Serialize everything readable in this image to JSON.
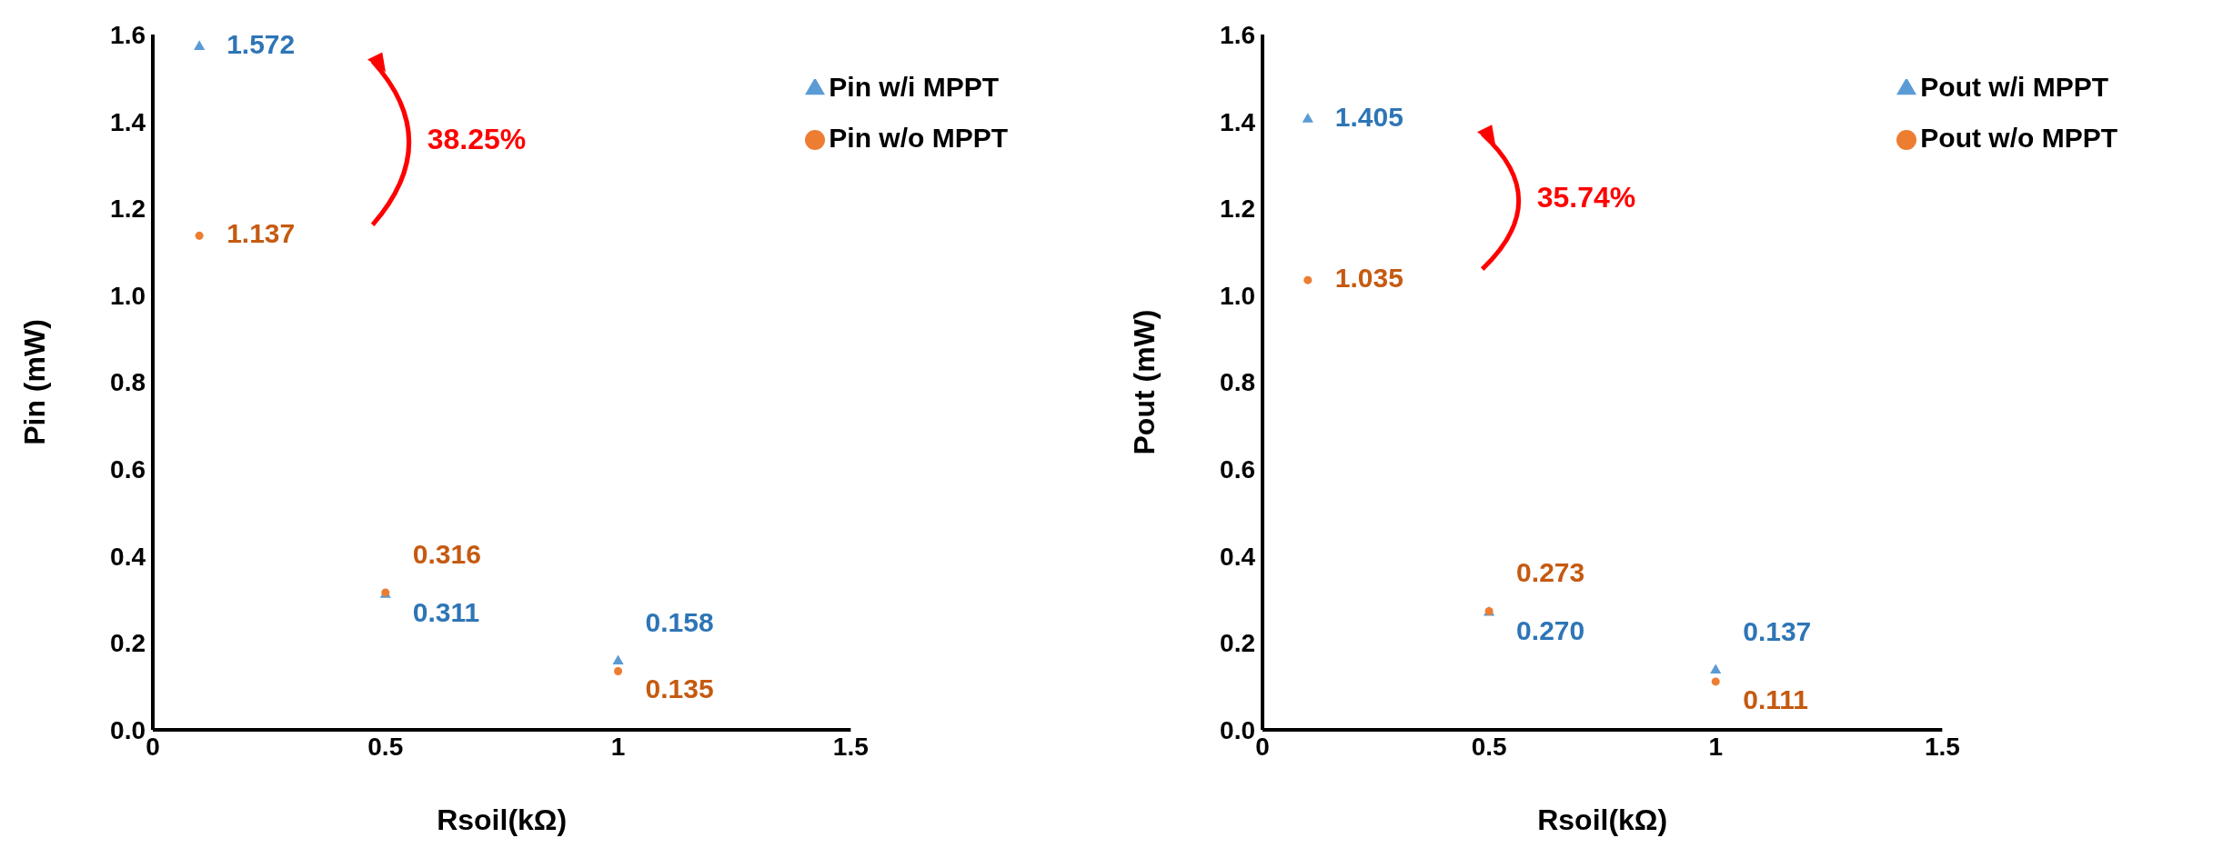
{
  "chart_data": [
    {
      "type": "scatter",
      "xlabel": "Rsoil(kΩ)",
      "ylabel": "Pin (mW)",
      "x": [
        0.1,
        0.5,
        1
      ],
      "xlim": [
        0,
        1.5
      ],
      "xticks": [
        0,
        0.5,
        1,
        1.5
      ],
      "ylim": [
        0,
        1.6
      ],
      "yticks": [
        {
          "value": 0,
          "label": "0.0"
        },
        {
          "value": 0.2,
          "label": "0.2"
        },
        {
          "value": 0.4,
          "label": "0.4"
        },
        {
          "value": 0.6,
          "label": "0.6"
        },
        {
          "value": 0.8,
          "label": "0.8"
        },
        {
          "value": 1,
          "label": "1.0"
        },
        {
          "value": 1.2,
          "label": "1.2"
        },
        {
          "value": 1.4,
          "label": "1.4"
        },
        {
          "value": 1.6,
          "label": "1.6"
        }
      ],
      "grid": false,
      "legend": "top right",
      "data_labels": true,
      "annotations": [
        "38.25%"
      ],
      "series": [
        {
          "name": "Pin w/i MPPT",
          "color": "#5b9bd5",
          "marker": "triangle",
          "values": [
            1.572,
            0.311,
            0.158
          ]
        },
        {
          "name": "Pin w/o MPPT",
          "color": "#ed7d31",
          "marker": "circle",
          "values": [
            1.137,
            0.316,
            0.135
          ]
        }
      ]
    },
    {
      "type": "scatter",
      "xlabel": "Rsoil(kΩ)",
      "ylabel": "Pout (mW)",
      "x": [
        0.1,
        0.5,
        1
      ],
      "xlim": [
        0,
        1.5
      ],
      "xticks": [
        0,
        0.5,
        1,
        1.5
      ],
      "ylim": [
        0,
        1.6
      ],
      "yticks": [
        {
          "value": 0,
          "label": "0.0"
        },
        {
          "value": 0.2,
          "label": "0.2"
        },
        {
          "value": 0.4,
          "label": "0.4"
        },
        {
          "value": 0.6,
          "label": "0.6"
        },
        {
          "value": 0.8,
          "label": "0.8"
        },
        {
          "value": 1,
          "label": "1.0"
        },
        {
          "value": 1.2,
          "label": "1.2"
        },
        {
          "value": 1.4,
          "label": "1.4"
        },
        {
          "value": 1.6,
          "label": "1.6"
        }
      ],
      "grid": false,
      "legend": "top right",
      "data_labels": true,
      "annotations": [
        "35.74%"
      ],
      "series": [
        {
          "name": "Pout w/i MPPT",
          "color": "#5b9bd5",
          "marker": "triangle",
          "values": [
            1.405,
            0.27,
            0.137
          ],
          "value_labels": [
            "1.405",
            "0.270",
            "0.137"
          ]
        },
        {
          "name": "Pout w/o MPPT",
          "color": "#ed7d31",
          "marker": "circle",
          "values": [
            1.035,
            0.273,
            0.111
          ]
        }
      ]
    }
  ]
}
